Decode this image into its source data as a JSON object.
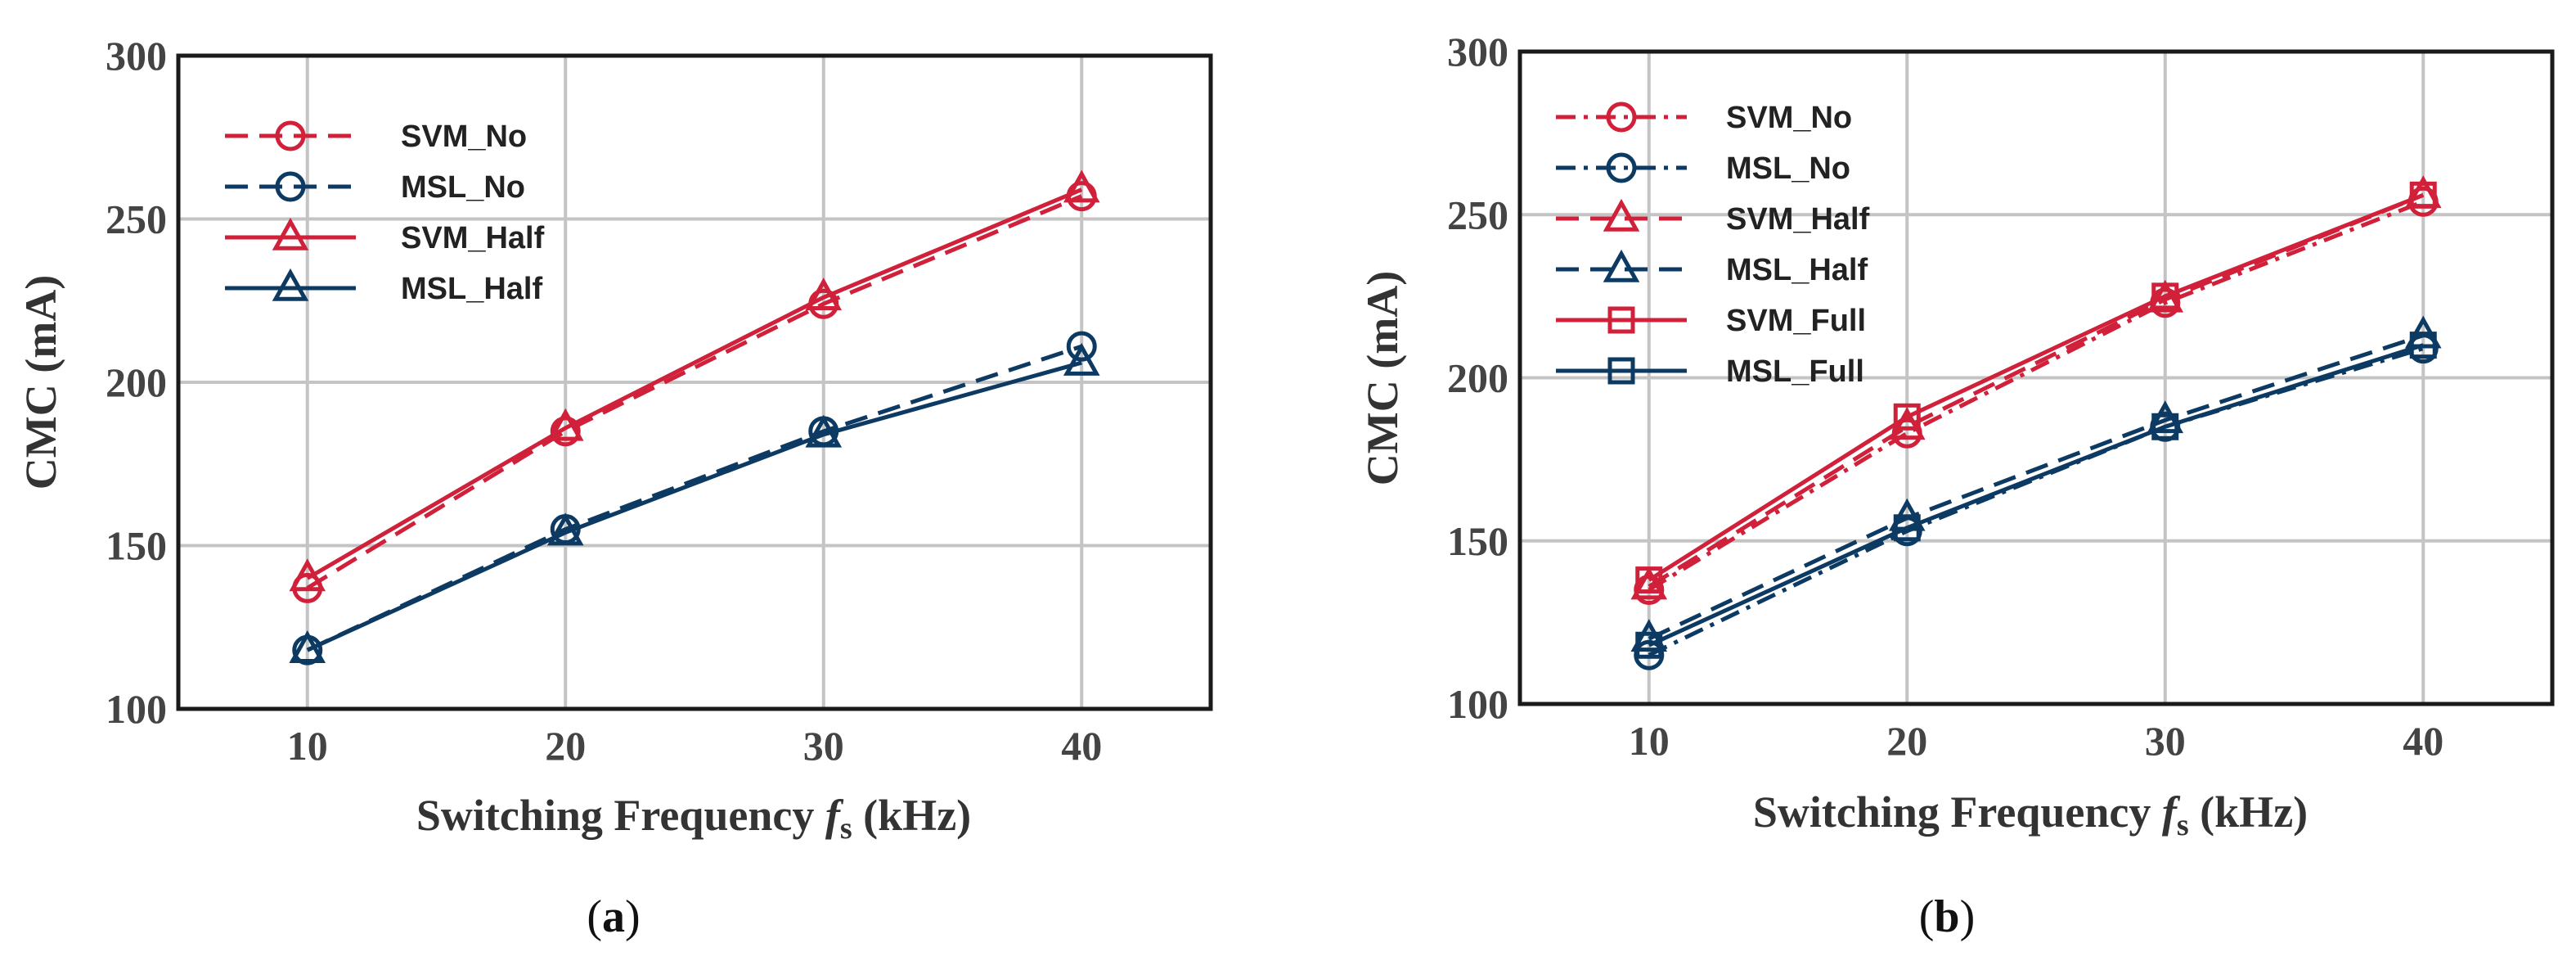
{
  "colors": {
    "svm": "#d0203a",
    "msl": "#0c3a63",
    "grid": "#c4c4c4",
    "frame": "#1a1a1a"
  },
  "chart_data": [
    {
      "type": "line",
      "panel": "a",
      "caption": "(a)",
      "caption_letter": "a",
      "x": [
        10,
        20,
        30,
        40
      ],
      "xticks": [
        10,
        20,
        30,
        40
      ],
      "yticks": [
        100,
        150,
        200,
        250,
        300
      ],
      "xlim": [
        5,
        45
      ],
      "ylim": [
        100,
        300
      ],
      "xlabel": {
        "main": "Switching Frequency ",
        "var": "f",
        "sub": "s",
        "unit": " (kHz)"
      },
      "ylabel": "CMC  (mA)",
      "grid": true,
      "legend_position": "top-left",
      "series": [
        {
          "name": "SVM_No",
          "group": "svm",
          "marker": "circle",
          "dash": "dashed",
          "values": [
            137,
            185,
            224,
            257
          ]
        },
        {
          "name": "MSL_No",
          "group": "msl",
          "marker": "circle",
          "dash": "dashed",
          "values": [
            118,
            155,
            185,
            211
          ]
        },
        {
          "name": "SVM_Half",
          "group": "svm",
          "marker": "triangle",
          "dash": "solid",
          "values": [
            140,
            186,
            226,
            259
          ]
        },
        {
          "name": "MSL_Half",
          "group": "msl",
          "marker": "triangle",
          "dash": "solid",
          "values": [
            118,
            154,
            184,
            206
          ]
        }
      ]
    },
    {
      "type": "line",
      "panel": "b",
      "caption": "(b)",
      "caption_letter": "b",
      "x": [
        10,
        20,
        30,
        40
      ],
      "xticks": [
        10,
        20,
        30,
        40
      ],
      "yticks": [
        100,
        150,
        200,
        250,
        300
      ],
      "xlim": [
        5,
        45
      ],
      "ylim": [
        100,
        300
      ],
      "xlabel": {
        "main": "Switching Frequency ",
        "var": "f",
        "sub": "s",
        "unit": " (kHz)"
      },
      "ylabel": "CMC  (mA)",
      "grid": true,
      "legend_position": "top-left",
      "series": [
        {
          "name": "SVM_No",
          "group": "svm",
          "marker": "circle",
          "dash": "dashdot",
          "values": [
            135,
            183,
            223,
            254
          ]
        },
        {
          "name": "MSL_No",
          "group": "msl",
          "marker": "circle",
          "dash": "dashdot",
          "values": [
            115,
            153,
            185,
            209
          ]
        },
        {
          "name": "SVM_Half",
          "group": "svm",
          "marker": "triangle",
          "dash": "dashed",
          "values": [
            136,
            185,
            224,
            256
          ]
        },
        {
          "name": "MSL_Half",
          "group": "msl",
          "marker": "triangle",
          "dash": "dashed",
          "values": [
            120,
            157,
            187,
            213
          ]
        },
        {
          "name": "SVM_Full",
          "group": "svm",
          "marker": "square",
          "dash": "solid",
          "values": [
            138,
            188,
            225,
            256
          ]
        },
        {
          "name": "MSL_Full",
          "group": "msl",
          "marker": "square",
          "dash": "solid",
          "values": [
            118,
            154,
            185,
            210
          ]
        }
      ]
    }
  ]
}
